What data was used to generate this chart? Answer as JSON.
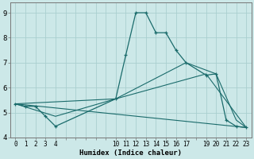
{
  "xlabel": "Humidex (Indice chaleur)",
  "background_color": "#cce8e8",
  "grid_color": "#aacfcf",
  "line_color": "#1a6b6b",
  "xlim": [
    -0.5,
    23.5
  ],
  "ylim": [
    4.0,
    9.4
  ],
  "xticks_all": [
    0,
    1,
    2,
    3,
    4,
    5,
    6,
    7,
    8,
    9,
    10,
    11,
    12,
    13,
    14,
    15,
    16,
    17,
    18,
    19,
    20,
    21,
    22,
    23
  ],
  "xtick_labels": {
    "0": "0",
    "1": "1",
    "2": "2",
    "3": "3",
    "4": "4",
    "10": "10",
    "11": "11",
    "12": "12",
    "13": "13",
    "14": "14",
    "15": "15",
    "16": "16",
    "17": "17",
    "19": "19",
    "20": "20",
    "21": "21",
    "22": "22",
    "23": "23"
  },
  "yticks": [
    4,
    5,
    6,
    7,
    8,
    9
  ],
  "line1_x": [
    0,
    1,
    2,
    3,
    4,
    10,
    11,
    12,
    13,
    14,
    15,
    16,
    17,
    19,
    20,
    21,
    22,
    23
  ],
  "line1_y": [
    5.35,
    5.25,
    5.25,
    4.85,
    4.45,
    5.55,
    7.3,
    9.0,
    9.0,
    8.2,
    8.2,
    7.5,
    7.0,
    6.5,
    6.55,
    4.7,
    4.45,
    4.4
  ],
  "line2_x": [
    0,
    4,
    10,
    17,
    20,
    22,
    23
  ],
  "line2_y": [
    5.35,
    4.85,
    5.55,
    7.0,
    6.55,
    4.7,
    4.4
  ],
  "line3_x": [
    0,
    23
  ],
  "line3_y": [
    5.35,
    4.4
  ],
  "line4_x": [
    0,
    10,
    19,
    23
  ],
  "line4_y": [
    5.35,
    5.55,
    6.55,
    4.4
  ],
  "figsize": [
    3.2,
    2.0
  ],
  "dpi": 100
}
